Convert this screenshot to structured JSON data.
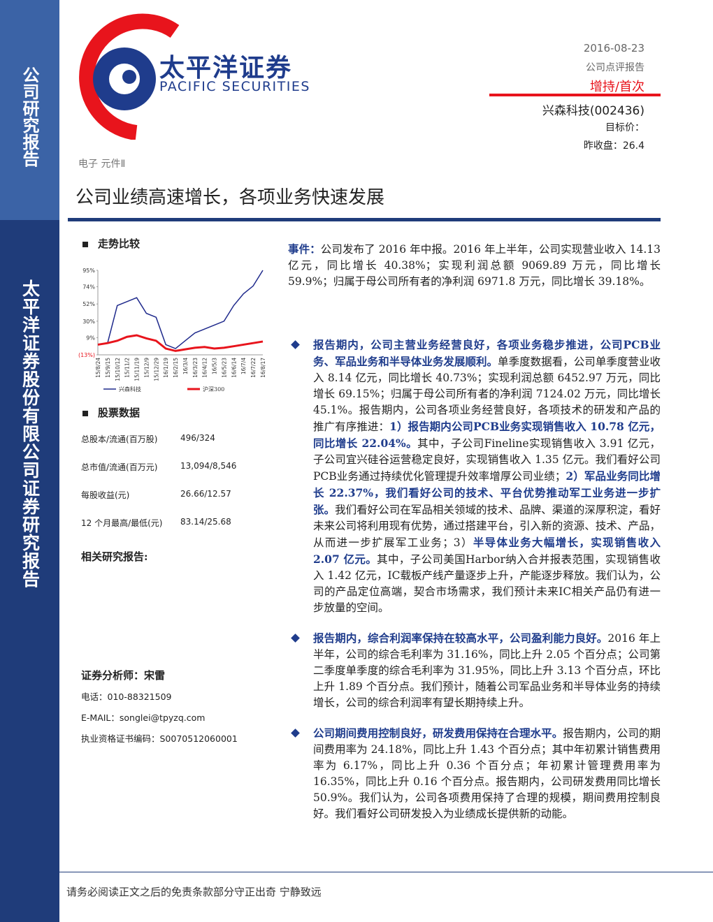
{
  "sidebar": {
    "top": "公司研究报告",
    "bottom": "太平洋证券股份有限公司证券研究报告"
  },
  "header": {
    "logo_cn": "太平洋证券",
    "logo_en": "PACIFIC SECURITIES",
    "date": "2016-08-23",
    "report_type": "公司点评报告",
    "rating": "增持/首次",
    "stock": "兴森科技(002436)",
    "target_price": "目标价：",
    "close_price": "昨收盘：26.4"
  },
  "industry": "电子 元件Ⅱ",
  "title": "公司业绩高速增长，各项业务快速发展",
  "trend_heading": "走势比较",
  "chart_data": {
    "type": "line",
    "categories": [
      "15/8/24",
      "15/9/15",
      "15/10/12",
      "15/11/2",
      "15/11/19",
      "15/12/9",
      "15/12/29",
      "16/1/19",
      "16/2/15",
      "16/3/4",
      "16/3/23",
      "16/4/12",
      "16/5/3",
      "16/5/23",
      "16/6/14",
      "16/7/4",
      "16/7/22",
      "16/8/17"
    ],
    "series": [
      {
        "name": "兴森科技",
        "color": "#1f2a8c",
        "values": [
          0,
          2,
          50,
          55,
          60,
          40,
          35,
          0,
          -5,
          5,
          15,
          20,
          25,
          30,
          50,
          65,
          75,
          95
        ]
      },
      {
        "name": "沪深300",
        "color": "#e8141c",
        "values": [
          0,
          2,
          5,
          10,
          12,
          8,
          5,
          -5,
          -8,
          -6,
          -4,
          -3,
          -5,
          -4,
          -2,
          0,
          2,
          4
        ]
      }
    ],
    "ylim": [
      -13,
      95
    ],
    "yticks": [
      {
        "value": 95,
        "label": "95%"
      },
      {
        "value": 74,
        "label": "74%"
      },
      {
        "value": 52,
        "label": "52%"
      },
      {
        "value": 30,
        "label": "30%"
      },
      {
        "value": 9,
        "label": "9%"
      },
      {
        "value": -13,
        "label": "(13%)"
      }
    ]
  },
  "stock_heading": "股票数据",
  "stock_table": [
    [
      "总股本/流通(百万股)",
      "496/324"
    ],
    [
      "总市值/流通(百万元)",
      "13,094/8,546"
    ],
    [
      "每股收益(元)",
      "26.66/12.57"
    ],
    [
      "12 个月最高/最低(元)",
      "83.14/25.68"
    ]
  ],
  "related_heading": "相关研究报告:",
  "analyst": {
    "name": "证券分析师：宋雷",
    "tel": "电话：010-88321509",
    "email": "E-MAIL：songlei@tpyzq.com",
    "cert": "执业资格证书编码：S0070512060001"
  },
  "event": {
    "label": "事件：",
    "text": "公司发布了 2016 年中报。2016 年上半年，公司实现营业收入 14.13 亿元，同比增长 40.38%；实现利润总额 9069.89 万元，同比增长 59.9%；归属于母公司所有者的净利润 6971.8 万元，同比增长 39.18%。"
  },
  "bullets": [
    [
      {
        "text": "报告期内，公司主营业务经营良好，各项业务稳步推进，公司PCB业务、军品业务和半导体业务发展顺利。",
        "bold": true
      },
      {
        "text": "单季度数据看，公司单季度营业收入 8.14 亿元，同比增长 40.73%；实现利润总额 6452.97 万元，同比增长 69.15%；归属于母公司所有者的净利润 7124.02 万元，同比增长 45.1%。报告期内，公司各项业务经营良好，各项技术的研发和产品的推广有序推进：",
        "bold": false
      },
      {
        "text": "1）报告期内公司PCB业务实现销售收入 10.78 亿元，同比增长 22.04%。",
        "bold": true
      },
      {
        "text": "其中，子公司Fineline实现销售收入 3.91 亿元，子公司宜兴硅谷运营稳定良好，实现销售收入 1.35 亿元。我们看好公司PCB业务通过持续优化管理提升效率增厚公司业绩；",
        "bold": false
      },
      {
        "text": "2）军品业务同比增长 22.37%，我们看好公司的技术、平台优势推动军工业务进一步扩张。",
        "bold": true
      },
      {
        "text": "我们看好公司在军品相关领域的技术、品牌、渠道的深厚积淀，看好未来公司将利用现有优势，通过搭建平台，引入新的资源、技术、产品，从而进一步扩展军工业务；3）",
        "bold": false
      },
      {
        "text": "半导体业务大幅增长，实现销售收入 2.07 亿元。",
        "bold": true
      },
      {
        "text": "其中，子公司美国Harbor纳入合并报表范围，实现销售收入 1.42 亿元，IC载板产线产量逐步上升，产能逐步释放。我们认为，公司的产品定位高端，契合市场需求，我们预计未来IC相关产品仍有进一步放量的空间。",
        "bold": false
      }
    ],
    [
      {
        "text": "报告期内，综合利润率保持在较高水平，公司盈利能力良好。",
        "bold": true
      },
      {
        "text": "2016 年上半年，公司的综合毛利率为 31.16%，同比上升 2.05 个百分点；公司第二季度单季度的综合毛利率为 31.95%，同比上升 3.13 个百分点，环比上升 1.89 个百分点。我们预计，随着公司军品业务和半导体业务的持续增长，公司的综合利润率有望长期持续上升。",
        "bold": false
      }
    ],
    [
      {
        "text": "公司期间费用控制良好，研发费用保持在合理水平。",
        "bold": true
      },
      {
        "text": "报告期内，公司的期间费用率为 24.18%，同比上升 1.43 个百分点；其中年初累计销售费用率为 6.17%，同比上升 0.36 个百分点；年初累计管理费用率为 16.35%，同比上升 0.16 个百分点。报告期内，公司研发费用同比增长 50.9%。我们认为，公司各项费用保持了合理的规模，期间费用控制良好。我们看好公司研发投入为业绩成长提供新的动能。",
        "bold": false
      }
    ]
  ],
  "footer": {
    "disclaimer": "请务必阅读正文之后的免责条款部分",
    "motto": "守正出奇 宁静致远"
  }
}
